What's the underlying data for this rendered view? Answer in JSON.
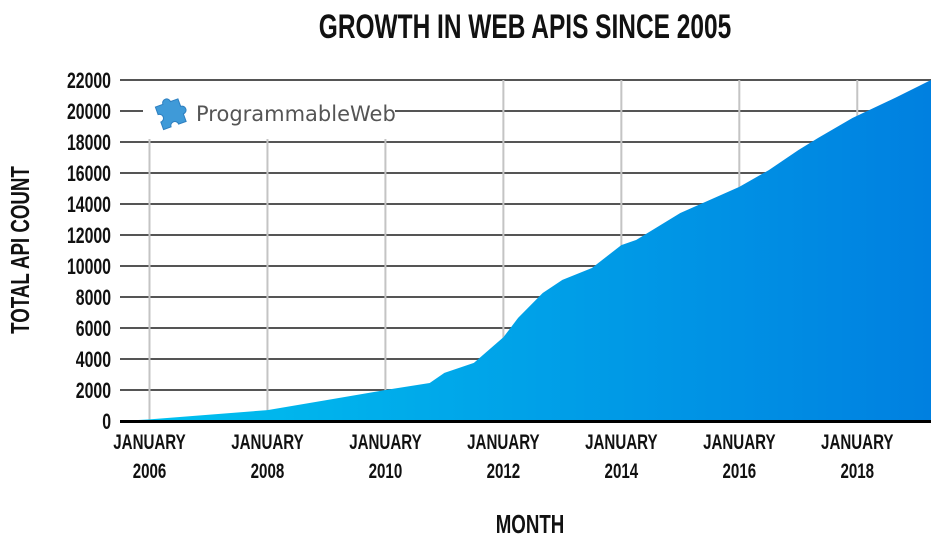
{
  "chart_data": {
    "type": "area",
    "title": "GROWTH IN WEB APIS SINCE 2005",
    "xlabel": "MONTH",
    "ylabel": "TOTAL API COUNT",
    "ylim": [
      0,
      22000
    ],
    "xlim": [
      "2005-07",
      "2019-04"
    ],
    "yticks": [
      0,
      2000,
      4000,
      6000,
      8000,
      10000,
      12000,
      14000,
      16000,
      18000,
      20000,
      22000
    ],
    "xticks": [
      {
        "date": "2006-01",
        "line1": "JANUARY",
        "line2": "2006"
      },
      {
        "date": "2008-01",
        "line1": "JANUARY",
        "line2": "2008"
      },
      {
        "date": "2010-01",
        "line1": "JANUARY",
        "line2": "2010"
      },
      {
        "date": "2012-01",
        "line1": "JANUARY",
        "line2": "2012"
      },
      {
        "date": "2014-01",
        "line1": "JANUARY",
        "line2": "2014"
      },
      {
        "date": "2016-01",
        "line1": "JANUARY",
        "line2": "2016"
      },
      {
        "date": "2018-01",
        "line1": "JANUARY",
        "line2": "2018"
      }
    ],
    "grid": true,
    "fill_colors": [
      "#00c3f0",
      "#0080e0"
    ],
    "points": [
      [
        "2005-07",
        0
      ],
      [
        "2006-01",
        100
      ],
      [
        "2007-01",
        400
      ],
      [
        "2008-01",
        700
      ],
      [
        "2009-01",
        1350
      ],
      [
        "2010-01",
        2000
      ],
      [
        "2010-10",
        2450
      ],
      [
        "2011-01",
        3100
      ],
      [
        "2011-07",
        3750
      ],
      [
        "2012-01",
        5400
      ],
      [
        "2012-04",
        6650
      ],
      [
        "2012-09",
        8260
      ],
      [
        "2013-01",
        9100
      ],
      [
        "2013-07",
        9870
      ],
      [
        "2014-01",
        11350
      ],
      [
        "2014-04",
        11680
      ],
      [
        "2015-01",
        13420
      ],
      [
        "2016-01",
        15100
      ],
      [
        "2016-07",
        16190
      ],
      [
        "2017-01",
        17480
      ],
      [
        "2017-05",
        18260
      ],
      [
        "2017-12",
        19550
      ],
      [
        "2018-09",
        20900
      ],
      [
        "2019-04",
        22000
      ]
    ]
  },
  "logo": {
    "text": "ProgrammableWeb",
    "icon": "puzzle-piece-icon"
  }
}
